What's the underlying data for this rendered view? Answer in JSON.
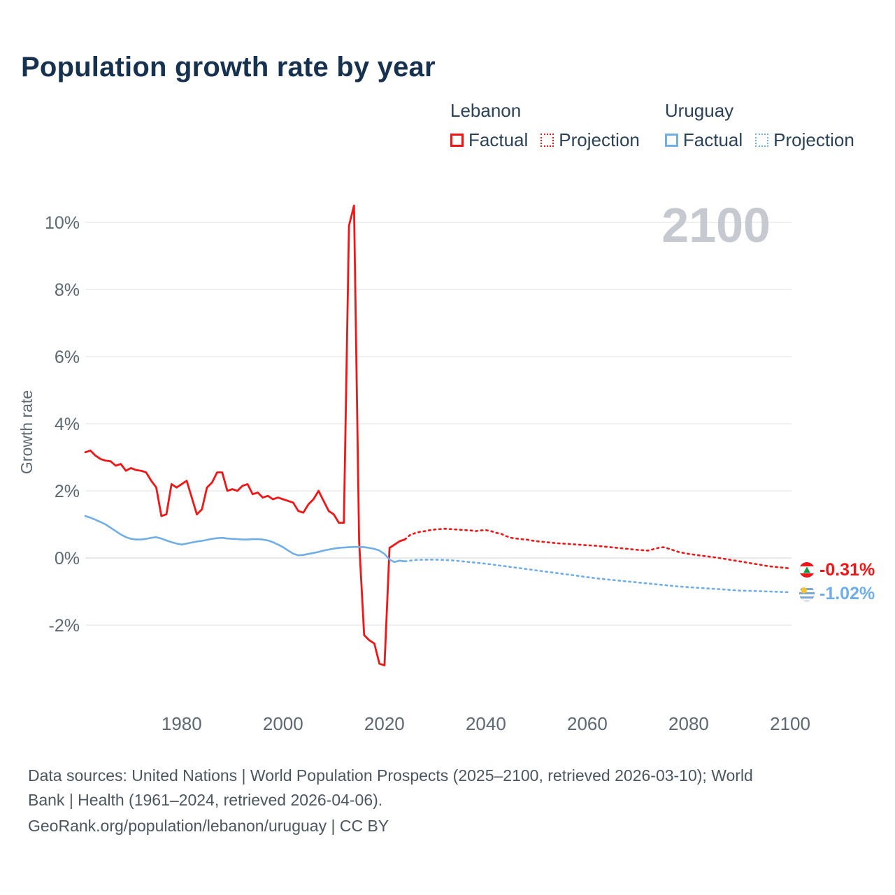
{
  "header": {
    "title": "Population growth rate by year"
  },
  "colors": {
    "lebanon": "#f01616",
    "uruguay": "#70aee8",
    "title": "#16324e",
    "axis_text": "#5c6872",
    "grid": "#e5e7eb",
    "grid_zero": "#d8dbe0",
    "watermark": "#c6cad0",
    "footer_text": "#4b565f"
  },
  "legend": {
    "groups": [
      {
        "country": "Lebanon",
        "color": "#f01616",
        "items": [
          {
            "label": "Factual",
            "style": "solid"
          },
          {
            "label": "Projection",
            "style": "dotted"
          }
        ]
      },
      {
        "country": "Uruguay",
        "color": "#70aee8",
        "items": [
          {
            "label": "Factual",
            "style": "solid"
          },
          {
            "label": "Projection",
            "style": "dotted"
          }
        ]
      }
    ]
  },
  "chart_data": {
    "type": "line",
    "title": "Population growth rate by year",
    "xlabel": "",
    "ylabel": "Growth rate",
    "watermark": "2100",
    "xlim": [
      1961,
      2100
    ],
    "ylim": [
      -3.5,
      10.6
    ],
    "grid": true,
    "y_ticks": [
      {
        "value": -2,
        "label": "-2%"
      },
      {
        "value": 0,
        "label": "0%"
      },
      {
        "value": 2,
        "label": "2%"
      },
      {
        "value": 4,
        "label": "4%"
      },
      {
        "value": 6,
        "label": "6%"
      },
      {
        "value": 8,
        "label": "8%"
      },
      {
        "value": 10,
        "label": "10%"
      }
    ],
    "x_ticks": [
      {
        "value": 1980,
        "label": "1980"
      },
      {
        "value": 2000,
        "label": "2000"
      },
      {
        "value": 2020,
        "label": "2020"
      },
      {
        "value": 2040,
        "label": "2040"
      },
      {
        "value": 2060,
        "label": "2060"
      },
      {
        "value": 2080,
        "label": "2080"
      },
      {
        "value": 2100,
        "label": "2100"
      }
    ],
    "series": [
      {
        "name": "Lebanon Factual",
        "color": "#f01616",
        "style": "solid",
        "width": 2.8,
        "points": [
          [
            1961,
            3.15
          ],
          [
            1962,
            3.2
          ],
          [
            1963,
            3.05
          ],
          [
            1964,
            2.95
          ],
          [
            1965,
            2.9
          ],
          [
            1966,
            2.88
          ],
          [
            1967,
            2.75
          ],
          [
            1968,
            2.8
          ],
          [
            1969,
            2.6
          ],
          [
            1970,
            2.68
          ],
          [
            1971,
            2.62
          ],
          [
            1972,
            2.6
          ],
          [
            1973,
            2.55
          ],
          [
            1974,
            2.3
          ],
          [
            1975,
            2.1
          ],
          [
            1976,
            1.25
          ],
          [
            1977,
            1.3
          ],
          [
            1978,
            2.2
          ],
          [
            1979,
            2.1
          ],
          [
            1980,
            2.2
          ],
          [
            1981,
            2.3
          ],
          [
            1982,
            1.8
          ],
          [
            1983,
            1.3
          ],
          [
            1984,
            1.45
          ],
          [
            1985,
            2.1
          ],
          [
            1986,
            2.25
          ],
          [
            1987,
            2.55
          ],
          [
            1988,
            2.55
          ],
          [
            1989,
            2.0
          ],
          [
            1990,
            2.05
          ],
          [
            1991,
            2.0
          ],
          [
            1992,
            2.15
          ],
          [
            1993,
            2.2
          ],
          [
            1994,
            1.9
          ],
          [
            1995,
            1.95
          ],
          [
            1996,
            1.8
          ],
          [
            1997,
            1.85
          ],
          [
            1998,
            1.75
          ],
          [
            1999,
            1.8
          ],
          [
            2000,
            1.75
          ],
          [
            2001,
            1.7
          ],
          [
            2002,
            1.65
          ],
          [
            2003,
            1.4
          ],
          [
            2004,
            1.35
          ],
          [
            2005,
            1.6
          ],
          [
            2006,
            1.75
          ],
          [
            2007,
            2.0
          ],
          [
            2008,
            1.7
          ],
          [
            2009,
            1.4
          ],
          [
            2010,
            1.3
          ],
          [
            2011,
            1.05
          ],
          [
            2012,
            1.05
          ],
          [
            2013,
            9.9
          ],
          [
            2014,
            10.5
          ],
          [
            2015,
            0.5
          ],
          [
            2016,
            -2.3
          ],
          [
            2017,
            -2.45
          ],
          [
            2018,
            -2.55
          ],
          [
            2019,
            -3.15
          ],
          [
            2020,
            -3.2
          ],
          [
            2021,
            0.3
          ],
          [
            2022,
            0.4
          ],
          [
            2023,
            0.5
          ],
          [
            2024,
            0.55
          ]
        ]
      },
      {
        "name": "Lebanon Projection",
        "color": "#f01616",
        "style": "dotted",
        "width": 2.6,
        "points": [
          [
            2024,
            0.55
          ],
          [
            2025,
            0.68
          ],
          [
            2026,
            0.74
          ],
          [
            2027,
            0.78
          ],
          [
            2028,
            0.8
          ],
          [
            2029,
            0.83
          ],
          [
            2030,
            0.85
          ],
          [
            2031,
            0.86
          ],
          [
            2032,
            0.87
          ],
          [
            2033,
            0.86
          ],
          [
            2034,
            0.85
          ],
          [
            2035,
            0.84
          ],
          [
            2036,
            0.83
          ],
          [
            2037,
            0.82
          ],
          [
            2038,
            0.8
          ],
          [
            2039,
            0.82
          ],
          [
            2040,
            0.83
          ],
          [
            2041,
            0.8
          ],
          [
            2042,
            0.75
          ],
          [
            2043,
            0.72
          ],
          [
            2044,
            0.65
          ],
          [
            2045,
            0.6
          ],
          [
            2046,
            0.58
          ],
          [
            2047,
            0.56
          ],
          [
            2048,
            0.55
          ],
          [
            2049,
            0.52
          ],
          [
            2050,
            0.5
          ],
          [
            2052,
            0.47
          ],
          [
            2054,
            0.44
          ],
          [
            2056,
            0.42
          ],
          [
            2058,
            0.4
          ],
          [
            2060,
            0.38
          ],
          [
            2062,
            0.36
          ],
          [
            2064,
            0.33
          ],
          [
            2066,
            0.3
          ],
          [
            2068,
            0.27
          ],
          [
            2070,
            0.24
          ],
          [
            2072,
            0.22
          ],
          [
            2074,
            0.3
          ],
          [
            2075,
            0.32
          ],
          [
            2076,
            0.28
          ],
          [
            2078,
            0.18
          ],
          [
            2080,
            0.12
          ],
          [
            2082,
            0.08
          ],
          [
            2084,
            0.04
          ],
          [
            2086,
            0.0
          ],
          [
            2088,
            -0.05
          ],
          [
            2090,
            -0.1
          ],
          [
            2092,
            -0.15
          ],
          [
            2094,
            -0.2
          ],
          [
            2096,
            -0.25
          ],
          [
            2098,
            -0.28
          ],
          [
            2100,
            -0.31
          ]
        ]
      },
      {
        "name": "Uruguay Factual",
        "color": "#70aee8",
        "style": "solid",
        "width": 2.6,
        "points": [
          [
            1961,
            1.25
          ],
          [
            1962,
            1.2
          ],
          [
            1963,
            1.14
          ],
          [
            1964,
            1.07
          ],
          [
            1965,
            1.0
          ],
          [
            1966,
            0.9
          ],
          [
            1967,
            0.8
          ],
          [
            1968,
            0.7
          ],
          [
            1969,
            0.62
          ],
          [
            1970,
            0.57
          ],
          [
            1971,
            0.55
          ],
          [
            1972,
            0.55
          ],
          [
            1973,
            0.57
          ],
          [
            1974,
            0.6
          ],
          [
            1975,
            0.62
          ],
          [
            1976,
            0.58
          ],
          [
            1977,
            0.52
          ],
          [
            1978,
            0.47
          ],
          [
            1979,
            0.43
          ],
          [
            1980,
            0.4
          ],
          [
            1981,
            0.43
          ],
          [
            1982,
            0.46
          ],
          [
            1983,
            0.49
          ],
          [
            1984,
            0.51
          ],
          [
            1985,
            0.54
          ],
          [
            1986,
            0.57
          ],
          [
            1987,
            0.59
          ],
          [
            1988,
            0.6
          ],
          [
            1989,
            0.58
          ],
          [
            1990,
            0.57
          ],
          [
            1991,
            0.56
          ],
          [
            1992,
            0.55
          ],
          [
            1993,
            0.55
          ],
          [
            1994,
            0.56
          ],
          [
            1995,
            0.56
          ],
          [
            1996,
            0.55
          ],
          [
            1997,
            0.52
          ],
          [
            1998,
            0.47
          ],
          [
            1999,
            0.4
          ],
          [
            2000,
            0.32
          ],
          [
            2001,
            0.22
          ],
          [
            2002,
            0.13
          ],
          [
            2003,
            0.08
          ],
          [
            2004,
            0.09
          ],
          [
            2005,
            0.12
          ],
          [
            2006,
            0.15
          ],
          [
            2007,
            0.18
          ],
          [
            2008,
            0.22
          ],
          [
            2009,
            0.25
          ],
          [
            2010,
            0.28
          ],
          [
            2011,
            0.3
          ],
          [
            2012,
            0.31
          ],
          [
            2013,
            0.32
          ],
          [
            2014,
            0.33
          ],
          [
            2015,
            0.33
          ],
          [
            2016,
            0.32
          ],
          [
            2017,
            0.3
          ],
          [
            2018,
            0.27
          ],
          [
            2019,
            0.22
          ],
          [
            2020,
            0.12
          ],
          [
            2021,
            -0.05
          ],
          [
            2022,
            -0.12
          ],
          [
            2023,
            -0.08
          ],
          [
            2024,
            -0.1
          ]
        ]
      },
      {
        "name": "Uruguay Projection",
        "color": "#70aee8",
        "style": "dotted",
        "width": 2.6,
        "points": [
          [
            2024,
            -0.1
          ],
          [
            2026,
            -0.06
          ],
          [
            2028,
            -0.05
          ],
          [
            2030,
            -0.05
          ],
          [
            2032,
            -0.06
          ],
          [
            2034,
            -0.08
          ],
          [
            2036,
            -0.11
          ],
          [
            2038,
            -0.14
          ],
          [
            2040,
            -0.17
          ],
          [
            2042,
            -0.21
          ],
          [
            2044,
            -0.25
          ],
          [
            2046,
            -0.29
          ],
          [
            2048,
            -0.33
          ],
          [
            2050,
            -0.37
          ],
          [
            2052,
            -0.41
          ],
          [
            2054,
            -0.45
          ],
          [
            2056,
            -0.49
          ],
          [
            2058,
            -0.53
          ],
          [
            2060,
            -0.57
          ],
          [
            2062,
            -0.61
          ],
          [
            2064,
            -0.64
          ],
          [
            2066,
            -0.67
          ],
          [
            2068,
            -0.7
          ],
          [
            2070,
            -0.73
          ],
          [
            2072,
            -0.76
          ],
          [
            2074,
            -0.79
          ],
          [
            2076,
            -0.82
          ],
          [
            2078,
            -0.85
          ],
          [
            2080,
            -0.87
          ],
          [
            2082,
            -0.89
          ],
          [
            2084,
            -0.91
          ],
          [
            2086,
            -0.93
          ],
          [
            2088,
            -0.95
          ],
          [
            2090,
            -0.97
          ],
          [
            2092,
            -0.98
          ],
          [
            2094,
            -0.99
          ],
          [
            2096,
            -1.0
          ],
          [
            2098,
            -1.01
          ],
          [
            2100,
            -1.02
          ]
        ]
      }
    ],
    "end_labels": [
      {
        "country": "Lebanon",
        "value": "-0.31%",
        "color": "#f01616"
      },
      {
        "country": "Uruguay",
        "value": "-1.02%",
        "color": "#70aee8"
      }
    ]
  },
  "footer": {
    "line1": "Data sources: United Nations | World Population Prospects (2025–2100, retrieved 2026-03-10); World",
    "line2": "Bank | Health (1961–2024, retrieved 2026-04-06).",
    "link": "GeoRank.org/population/lebanon/uruguay | CC BY"
  }
}
